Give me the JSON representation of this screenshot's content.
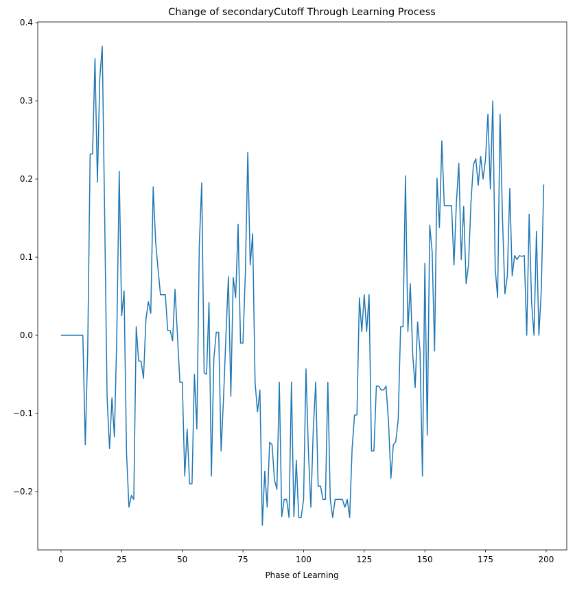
{
  "chart_data": {
    "type": "line",
    "title": "Change of secondaryCutoff Through Learning Process",
    "x_label": "Phase of Learning",
    "x": [
      0,
      1,
      2,
      3,
      4,
      5,
      6,
      7,
      8,
      9,
      10,
      11,
      12,
      13,
      14,
      15,
      16,
      17,
      18,
      19,
      20,
      21,
      22,
      23,
      24,
      25,
      26,
      27,
      28,
      29,
      30,
      31,
      32,
      33,
      34,
      35,
      36,
      37,
      38,
      39,
      40,
      41,
      42,
      43,
      44,
      45,
      46,
      47,
      48,
      49,
      50,
      51,
      52,
      53,
      54,
      55,
      56,
      57,
      58,
      59,
      60,
      61,
      62,
      63,
      64,
      65,
      66,
      67,
      68,
      69,
      70,
      71,
      72,
      73,
      74,
      75,
      76,
      77,
      78,
      79,
      80,
      81,
      82,
      83,
      84,
      85,
      86,
      87,
      88,
      89,
      90,
      91,
      92,
      93,
      94,
      95,
      96,
      97,
      98,
      99,
      100,
      101,
      102,
      103,
      104,
      105,
      106,
      107,
      108,
      109,
      110,
      111,
      112,
      113,
      114,
      115,
      116,
      117,
      118,
      119,
      120,
      121,
      122,
      123,
      124,
      125,
      126,
      127,
      128,
      129,
      130,
      131,
      132,
      133,
      134,
      135,
      136,
      137,
      138,
      139,
      140,
      141,
      142,
      143,
      144,
      145,
      146,
      147,
      148,
      149,
      150,
      151,
      152,
      153,
      154,
      155,
      156,
      157,
      158,
      159,
      160,
      161,
      162,
      163,
      164,
      165,
      166,
      167,
      168,
      169,
      170,
      171,
      172,
      173,
      174,
      175,
      176,
      177,
      178,
      179,
      180,
      181,
      182,
      183,
      184,
      185,
      186,
      187,
      188,
      189,
      190,
      191,
      192,
      193,
      194,
      195,
      196,
      197,
      198,
      199
    ],
    "series": [
      {
        "color": "#1f77b4",
        "values": [
          0,
          0,
          0,
          0,
          0,
          0,
          0,
          0,
          0,
          0,
          -0.14,
          -0.02,
          0.232,
          0.232,
          0.354,
          0.196,
          0.33,
          0.37,
          0.15,
          -0.08,
          -0.145,
          -0.08,
          -0.13,
          0.0,
          0.21,
          0.025,
          0.057,
          -0.15,
          -0.22,
          -0.205,
          -0.21,
          0.011,
          -0.033,
          -0.033,
          -0.055,
          0.02,
          0.043,
          0.028,
          0.19,
          0.12,
          0.085,
          0.052,
          0.052,
          0.052,
          0.006,
          0.006,
          -0.007,
          0.059,
          0.0,
          -0.06,
          -0.06,
          -0.18,
          -0.12,
          -0.19,
          -0.19,
          -0.05,
          -0.12,
          0.115,
          0.195,
          -0.048,
          -0.05,
          0.042,
          -0.18,
          -0.03,
          0.004,
          0.004,
          -0.148,
          -0.08,
          0.0,
          0.075,
          -0.078,
          0.074,
          0.048,
          0.142,
          -0.01,
          -0.01,
          0.08,
          0.234,
          0.09,
          0.13,
          -0.06,
          -0.098,
          -0.07,
          -0.243,
          -0.174,
          -0.22,
          -0.137,
          -0.14,
          -0.185,
          -0.197,
          -0.06,
          -0.232,
          -0.21,
          -0.21,
          -0.233,
          -0.06,
          -0.232,
          -0.16,
          -0.233,
          -0.233,
          -0.21,
          -0.043,
          -0.15,
          -0.22,
          -0.12,
          -0.06,
          -0.193,
          -0.193,
          -0.21,
          -0.21,
          -0.06,
          -0.21,
          -0.233,
          -0.21,
          -0.21,
          -0.21,
          -0.21,
          -0.22,
          -0.21,
          -0.233,
          -0.145,
          -0.102,
          -0.102,
          0.048,
          0.005,
          0.052,
          0.005,
          0.052,
          -0.148,
          -0.148,
          -0.065,
          -0.065,
          -0.07,
          -0.07,
          -0.065,
          -0.11,
          -0.183,
          -0.14,
          -0.136,
          -0.108,
          0.011,
          0.011,
          0.204,
          0.005,
          0.066,
          -0.025,
          -0.067,
          0.017,
          -0.02,
          -0.18,
          0.092,
          -0.128,
          0.141,
          0.107,
          -0.02,
          0.201,
          0.138,
          0.249,
          0.166,
          0.166,
          0.166,
          0.166,
          0.09,
          0.17,
          0.22,
          0.097,
          0.165,
          0.066,
          0.09,
          0.17,
          0.218,
          0.226,
          0.192,
          0.229,
          0.2,
          0.225,
          0.283,
          0.187,
          0.3,
          0.085,
          0.048,
          0.283,
          0.15,
          0.053,
          0.076,
          0.188,
          0.076,
          0.102,
          0.097,
          0.102,
          0.101,
          0.102,
          0.0,
          0.155,
          0.042,
          0.0,
          0.133,
          0.0,
          0.058,
          0.193
        ]
      }
    ],
    "xlim": [
      -9.6,
      208.5
    ],
    "xticks": [
      0,
      25,
      50,
      75,
      100,
      125,
      150,
      175,
      200
    ],
    "ylim": [
      -0.2746,
      0.401
    ],
    "yticks": [
      {
        "value": -0.2,
        "label": "−0.2"
      },
      {
        "value": -0.1,
        "label": "−0.1"
      },
      {
        "value": 0,
        "label": "0.0"
      },
      0.1,
      0.2,
      0.3,
      0.4
    ],
    "grid": false
  }
}
